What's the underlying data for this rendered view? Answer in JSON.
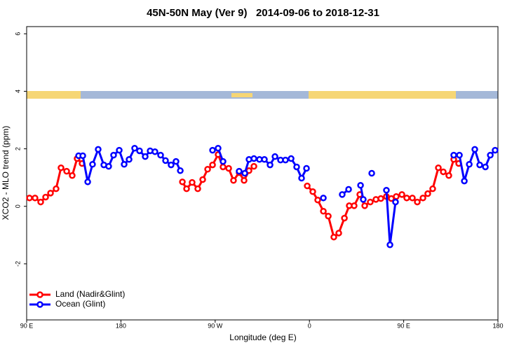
{
  "chart_data": {
    "type": "line",
    "title": "45N-50N May (Ver 9)   2014-09-06 to 2018-12-31",
    "x_label": "Longitude (deg E)",
    "y_label": "XCO2 - MLO trend (ppm)",
    "xlim": [
      90,
      540
    ],
    "ylim": [
      -3.95,
      6.25
    ],
    "xticks": [
      {
        "value": 90,
        "label": "90 E"
      },
      180,
      {
        "value": 270,
        "label": "90 W"
      },
      {
        "value": 360,
        "label": "0"
      },
      {
        "value": 450,
        "label": "90 E"
      },
      {
        "value": 540,
        "label": "180"
      }
    ],
    "yticks": [
      -2,
      0,
      2,
      4,
      6
    ],
    "grid": false,
    "legend": "bottom-left",
    "series": [
      {
        "name": "Land (Nadir&Glint)",
        "color": "#ff0000",
        "x": [
          92.7,
          98.0,
          103.4,
          108.1,
          112.8,
          118.1,
          122.8,
          128.2,
          133.5,
          138.2,
          142.9,
          null,
          238.7,
          242.7,
          248.0,
          253.4,
          258.1,
          262.8,
          267.5,
          272.8,
          277.5,
          282.9,
          287.5,
          292.9,
          297.6,
          302.3,
          307.0,
          null,
          357.9,
          363.2,
          367.9,
          373.3,
          378.0,
          383.3,
          388.0,
          393.4,
          398.0,
          402.7,
          408.1,
          412.8,
          418.1,
          423.5,
          428.2,
          433.5,
          438.2,
          442.9,
          448.3,
          452.9,
          458.3,
          463.0,
          468.4,
          473.0,
          477.7,
          483.1,
          487.8,
          493.1,
          497.8,
          502.5
        ],
        "values": [
          0.29,
          0.29,
          0.15,
          0.32,
          0.46,
          0.61,
          1.34,
          1.22,
          1.07,
          1.66,
          1.49,
          null,
          0.85,
          0.61,
          0.83,
          0.61,
          0.93,
          1.29,
          1.44,
          1.8,
          1.37,
          1.32,
          0.9,
          1.17,
          0.9,
          1.24,
          1.39,
          null,
          0.71,
          0.51,
          0.22,
          -0.17,
          -0.34,
          -1.07,
          -0.93,
          -0.41,
          0.02,
          0.02,
          0.41,
          0.02,
          0.15,
          0.24,
          0.27,
          0.34,
          0.27,
          0.34,
          0.41,
          0.29,
          0.29,
          0.15,
          0.29,
          0.44,
          0.61,
          1.34,
          1.2,
          1.07,
          1.63,
          1.49
        ]
      },
      {
        "name": "Ocean (Glint)",
        "color": "#0000ff",
        "x": [
          139.6,
          143.6,
          148.3,
          152.9,
          158.3,
          163.7,
          168.3,
          173.0,
          178.4,
          183.1,
          187.8,
          193.1,
          197.8,
          203.2,
          207.9,
          212.5,
          217.9,
          222.6,
          227.9,
          232.6,
          236.7,
          null,
          267.5,
          272.8,
          277.5,
          null,
          292.9,
          298.3,
          302.3,
          307.0,
          312.3,
          317.0,
          322.4,
          327.1,
          332.4,
          337.1,
          342.5,
          347.8,
          352.5,
          357.2,
          null,
          373.3,
          null,
          391.3,
          397.4,
          null,
          408.8,
          411.4,
          null,
          419.5,
          null,
          433.5,
          436.9,
          442.2,
          null,
          497.8,
          503.2,
          507.9,
          512.6,
          517.9,
          522.6,
          528.0,
          532.7,
          537.3
        ],
        "values": [
          1.76,
          1.76,
          0.85,
          1.46,
          1.98,
          1.44,
          1.39,
          1.78,
          1.95,
          1.46,
          1.63,
          2.02,
          1.93,
          1.73,
          1.93,
          1.9,
          1.78,
          1.59,
          1.44,
          1.56,
          1.24,
          null,
          1.95,
          2.02,
          1.56,
          null,
          1.22,
          1.15,
          1.63,
          1.66,
          1.63,
          1.63,
          1.44,
          1.73,
          1.61,
          1.61,
          1.66,
          1.37,
          0.98,
          1.32,
          null,
          0.29,
          null,
          0.41,
          0.59,
          null,
          0.73,
          0.24,
          null,
          1.15,
          null,
          0.56,
          -1.34,
          0.15,
          null,
          1.78,
          1.78,
          0.88,
          1.46,
          1.98,
          1.44,
          1.37,
          1.78,
          1.95
        ]
      }
    ]
  }
}
